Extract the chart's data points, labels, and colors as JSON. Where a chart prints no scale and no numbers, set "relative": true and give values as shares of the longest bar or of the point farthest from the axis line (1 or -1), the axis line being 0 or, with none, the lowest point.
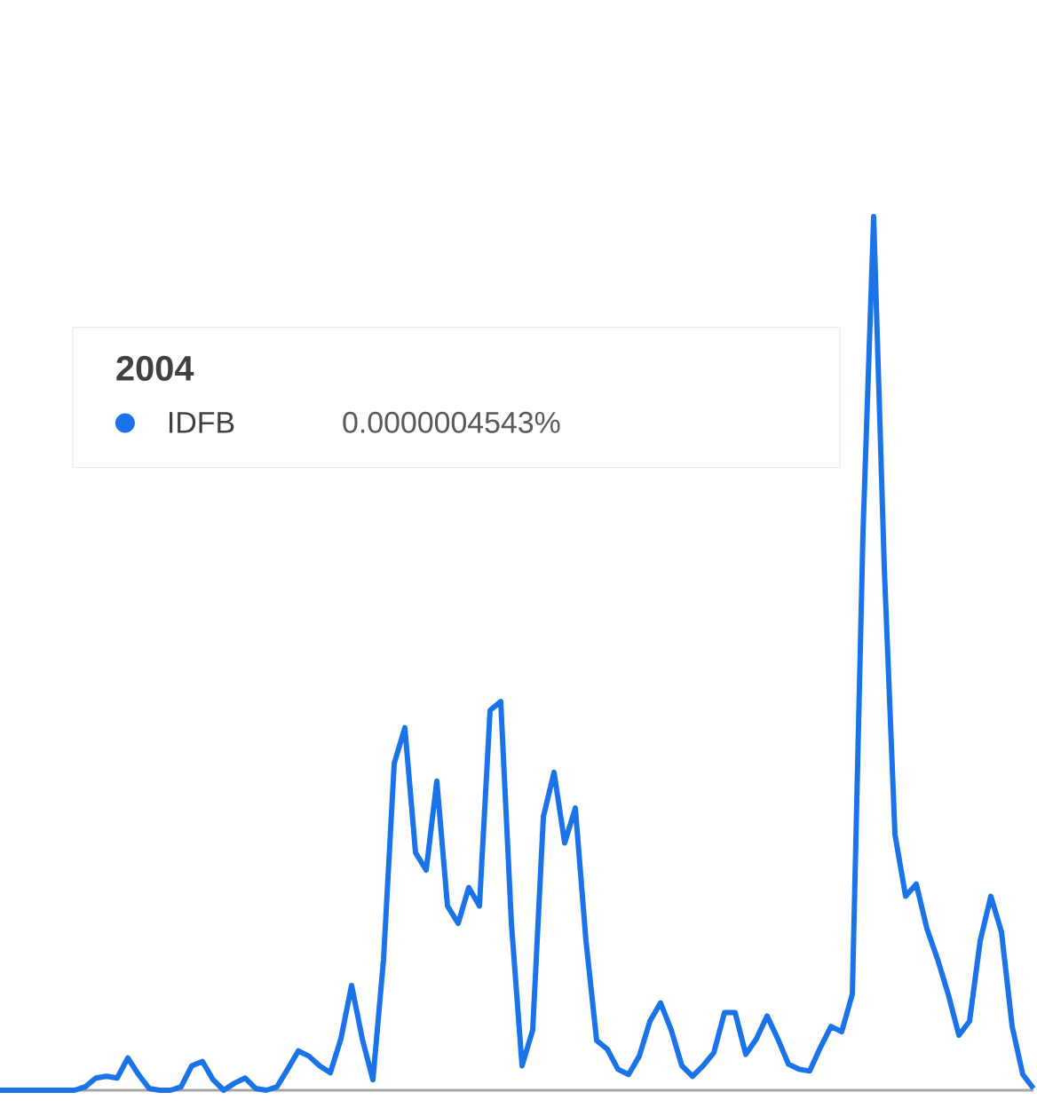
{
  "chart_data": {
    "type": "line",
    "relative": true,
    "legend": "top left",
    "legend_title": "2004",
    "annotations": [
      "0.0000004543%"
    ],
    "categories": [
      null,
      null,
      null,
      null,
      null,
      null,
      null,
      null,
      null,
      null,
      null,
      null,
      null,
      null,
      null,
      null,
      null,
      null,
      null,
      null,
      null,
      null,
      null,
      null,
      null,
      null,
      null,
      null,
      null,
      null,
      null,
      null,
      null,
      null,
      null,
      null,
      null,
      null,
      null,
      null,
      null,
      null,
      null,
      null,
      null,
      null,
      null,
      null,
      null,
      null,
      null,
      null,
      null,
      null,
      null,
      null,
      null,
      null,
      null,
      null,
      null,
      null,
      null,
      null,
      null,
      null,
      null,
      null,
      null,
      null,
      null,
      null,
      null,
      null,
      null,
      null,
      null,
      null,
      null,
      null,
      null,
      null,
      null,
      null,
      null,
      null,
      null,
      null,
      null,
      null,
      null,
      null,
      null,
      null,
      null,
      null,
      null,
      null
    ],
    "series": [
      {
        "name": "IDFB",
        "color": "#1a73e8",
        "values": [
          0,
          0,
          0,
          0,
          0,
          0,
          0,
          0,
          0.004,
          0.014,
          0.016,
          0.014,
          0.037,
          0.018,
          0.002,
          0,
          0,
          0.004,
          0.028,
          0.033,
          0.012,
          0,
          0.008,
          0.014,
          0.002,
          0,
          0.004,
          0.024,
          0.045,
          0.039,
          0.028,
          0.02,
          0.059,
          0.12,
          0.059,
          0.012,
          0.15,
          0.374,
          0.415,
          0.272,
          0.252,
          0.354,
          0.211,
          0.191,
          0.232,
          0.211,
          0.435,
          0.445,
          0.191,
          0.028,
          0.069,
          0.313,
          0.364,
          0.283,
          0.323,
          0.171,
          0.057,
          0.047,
          0.024,
          0.018,
          0.039,
          0.079,
          0.1,
          0.069,
          0.028,
          0.016,
          0.028,
          0.043,
          0.089,
          0.089,
          0.041,
          0.059,
          0.085,
          0.059,
          0.03,
          0.024,
          0.022,
          0.049,
          0.073,
          0.067,
          0.11,
          0.638,
          1,
          0.598,
          0.293,
          0.222,
          0.236,
          0.185,
          0.15,
          0.11,
          0.063,
          0.079,
          0.171,
          0.222,
          0.181,
          0.073,
          0.018,
          0.002
        ]
      }
    ]
  }
}
